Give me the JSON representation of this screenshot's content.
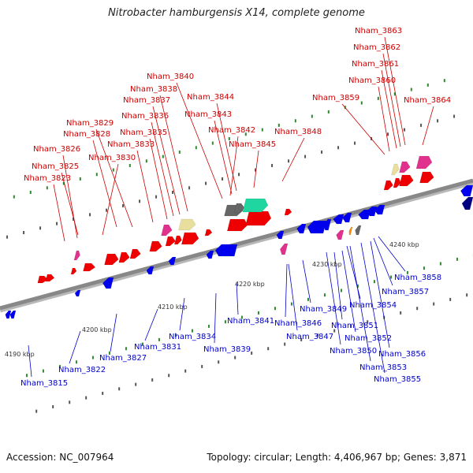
{
  "title": "Nitrobacter hamburgensis X14, complete genome",
  "accession_text": "Accession: NC_007964",
  "summary_text": "Topology: circular; Length: 4,406,967 bp; Genes: 3,871",
  "colors": {
    "forward_label": "#cc0000",
    "reverse_label": "#0000cc",
    "backbone": "#888888",
    "tick": "#2e8b2e"
  },
  "scale_labels": [
    "4190 kbp",
    "4200 kbp",
    "4210 kbp",
    "4220 kbp",
    "4230 kbp",
    "4240 kbp"
  ],
  "forward_labels": [
    "Nham_3823",
    "Nham_3825",
    "Nham_3826",
    "Nham_3828",
    "Nham_3829",
    "Nham_3830",
    "Nham_3833",
    "Nham_3835",
    "Nham_3836",
    "Nham_3837",
    "Nham_3838",
    "Nham_3840",
    "Nham_3842",
    "Nham_3843",
    "Nham_3844",
    "Nham_3845",
    "Nham_3848",
    "Nham_3859",
    "Nham_3860",
    "Nham_3861",
    "Nham_3862",
    "Nham_3863",
    "Nham_3864"
  ],
  "reverse_labels": [
    "Nham_3815",
    "Nham_3822",
    "Nham_3827",
    "Nham_3831",
    "Nham_3834",
    "Nham_3839",
    "Nham_3841",
    "Nham_3846",
    "Nham_3847",
    "Nham_3849",
    "Nham_3850",
    "Nham_3851",
    "Nham_3852",
    "Nham_3853",
    "Nham_3854",
    "Nham_3855",
    "Nham_3856",
    "Nham_3857",
    "Nham_3858"
  ]
}
